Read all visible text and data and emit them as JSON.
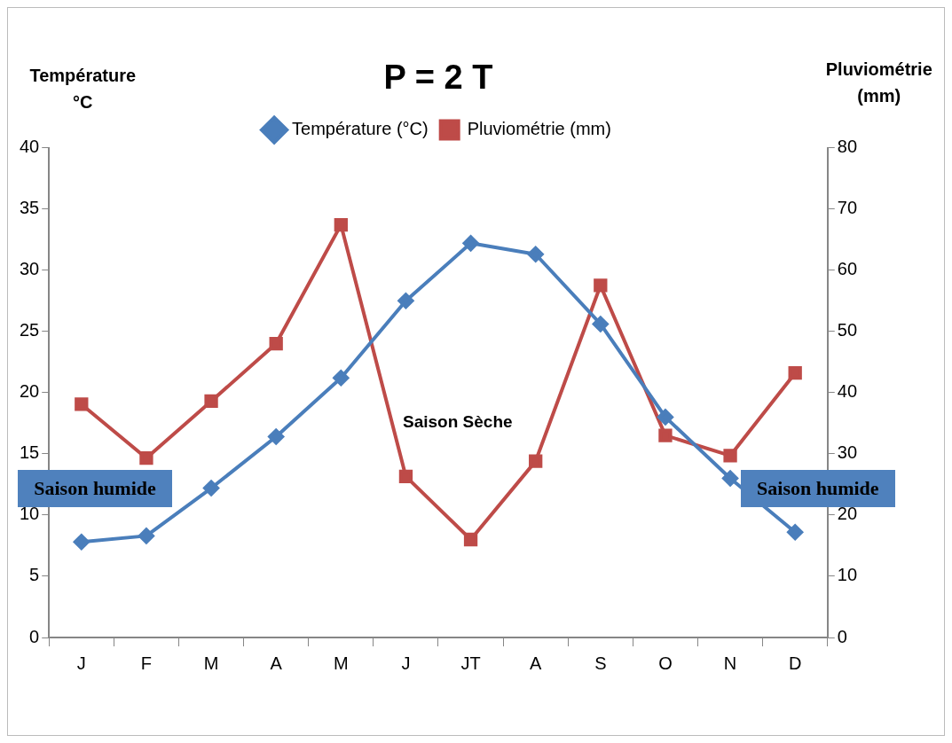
{
  "chart_data": {
    "type": "line",
    "title": "P = 2 T",
    "ylabel": "Température °C",
    "y2label": "Pluviométrie (mm)",
    "categories": [
      "J",
      "F",
      "M",
      "A",
      "M",
      "J",
      "JT",
      "A",
      "S",
      "O",
      "N",
      "D"
    ],
    "series": [
      {
        "name": "Température (°C)",
        "color": "#4a7ebb",
        "marker": "diamond",
        "values": [
          7.8,
          8.3,
          12.2,
          16.4,
          21.2,
          27.5,
          32.2,
          31.3,
          25.6,
          18.0,
          13.0,
          8.6
        ]
      },
      {
        "name": "Pluviométrie (mm)",
        "color": "#be4b48",
        "marker": "square",
        "axis": "y2",
        "values": [
          38.1,
          29.3,
          38.6,
          48,
          67.4,
          26.3,
          16.0,
          28.8,
          57.5,
          33.0,
          29.7,
          43.2
        ]
      }
    ],
    "ylim": [
      0,
      40
    ],
    "yticks": [
      0,
      5,
      10,
      15,
      20,
      25,
      30,
      35,
      40
    ],
    "y2lim": [
      0,
      80
    ],
    "y2ticks": [
      0,
      10,
      20,
      30,
      40,
      50,
      60,
      70,
      80
    ],
    "grid": false,
    "legend": "top",
    "line_style": "solid",
    "annotations": [
      "Saison humide",
      "Saison Sèche",
      "Saison humide"
    ]
  }
}
